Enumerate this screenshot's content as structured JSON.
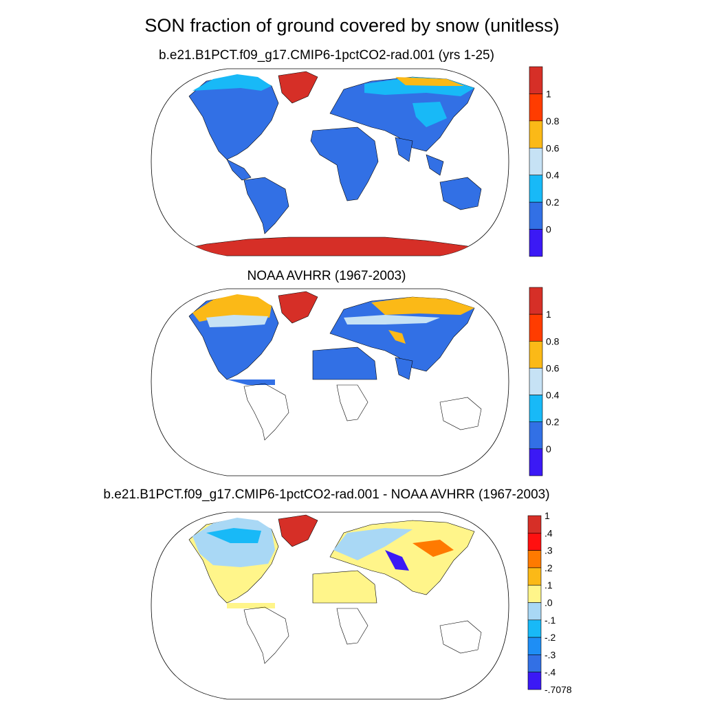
{
  "title": "SON fraction of ground covered by snow (unitless)",
  "panels": [
    {
      "title": "b.e21.B1PCT.f09_g17.CMIP6-1pctCO2-rad.001 (yrs 1-25)",
      "colorbar": {
        "labels": [
          "1",
          "0.8",
          "0.6",
          "0.4",
          "0.2",
          "0"
        ],
        "colors": [
          "#d62f27",
          "#ff3c00",
          "#fbb917",
          "#c6e2f5",
          "#18b9f7",
          "#3270e5",
          "#3b19f5"
        ]
      }
    },
    {
      "title": "NOAA AVHRR (1967-2003)",
      "colorbar": {
        "labels": [
          "1",
          "0.8",
          "0.6",
          "0.4",
          "0.2",
          "0"
        ],
        "colors": [
          "#d62f27",
          "#ff3c00",
          "#fbb917",
          "#c6e2f5",
          "#18b9f7",
          "#3270e5",
          "#3b19f5"
        ]
      }
    },
    {
      "title": "b.e21.B1PCT.f09_g17.CMIP6-1pctCO2-rad.001 - NOAA AVHRR (1967-2003)",
      "colorbar": {
        "labels": [
          "1",
          ".4",
          ".3",
          ".2",
          ".1",
          ".0",
          "-.1",
          "-.2",
          "-.3",
          "-.4",
          "-.7078"
        ],
        "colors": [
          "#d62f27",
          "#ff1010",
          "#ff7a00",
          "#fbb917",
          "#fff58a",
          "#a9d8f5",
          "#18b9f7",
          "#1e8ef5",
          "#3270e5",
          "#3b19f5"
        ]
      }
    }
  ]
}
